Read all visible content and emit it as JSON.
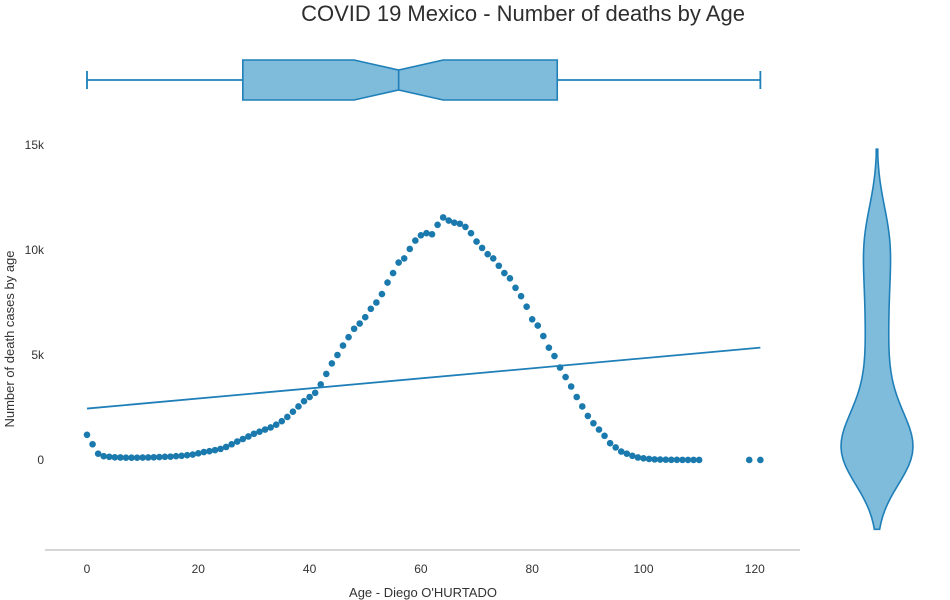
{
  "chart_data": {
    "type": "scatter",
    "title": "COVID 19 Mexico - Number of deaths by Age",
    "xlabel": "Age - Diego O'HURTADO",
    "ylabel": "Number of death cases by age",
    "xlim": [
      -7.5,
      128
    ],
    "ylim": [
      -4200,
      15000
    ],
    "x_ticks": [
      0,
      20,
      40,
      60,
      80,
      100,
      120
    ],
    "x_tick_labels": [
      "0",
      "20",
      "40",
      "60",
      "80",
      "100",
      "120"
    ],
    "y_ticks": [
      0,
      5000,
      10000,
      15000
    ],
    "y_tick_labels": [
      "0",
      "5k",
      "10k",
      "15k"
    ],
    "grid": false,
    "colors": {
      "marker": "#1f77b4",
      "marker_fill": "#1a79ad",
      "trend_line": "#1f7fb8",
      "box_fill": "#7fbcdc",
      "box_stroke": "#1f7fb8",
      "axis": "#bdbdbd"
    },
    "series": [
      {
        "type": "scatter",
        "x": [
          0,
          1,
          2,
          3,
          4,
          5,
          6,
          7,
          8,
          9,
          10,
          11,
          12,
          13,
          14,
          15,
          16,
          17,
          18,
          19,
          20,
          21,
          22,
          23,
          24,
          25,
          26,
          27,
          28,
          29,
          30,
          31,
          32,
          33,
          34,
          35,
          36,
          37,
          38,
          39,
          40,
          41,
          42,
          43,
          44,
          45,
          46,
          47,
          48,
          49,
          50,
          51,
          52,
          53,
          54,
          55,
          56,
          57,
          58,
          59,
          60,
          61,
          62,
          63,
          64,
          65,
          66,
          67,
          68,
          69,
          70,
          71,
          72,
          73,
          74,
          75,
          76,
          77,
          78,
          79,
          80,
          81,
          82,
          83,
          84,
          85,
          86,
          87,
          88,
          89,
          90,
          91,
          92,
          93,
          94,
          95,
          96,
          97,
          98,
          99,
          100,
          101,
          102,
          103,
          104,
          105,
          106,
          107,
          108,
          109,
          110,
          119,
          121
        ],
        "y": [
          1200,
          750,
          300,
          180,
          150,
          130,
          120,
          110,
          110,
          110,
          115,
          120,
          130,
          140,
          150,
          160,
          180,
          200,
          230,
          260,
          320,
          380,
          420,
          470,
          530,
          620,
          750,
          880,
          1000,
          1120,
          1250,
          1350,
          1450,
          1550,
          1680,
          1850,
          2050,
          2300,
          2550,
          2800,
          3000,
          3200,
          3600,
          4100,
          4600,
          5000,
          5450,
          5850,
          6250,
          6500,
          6800,
          7200,
          7500,
          7900,
          8450,
          8900,
          9400,
          9600,
          10050,
          10450,
          10700,
          10800,
          10750,
          11200,
          11550,
          11400,
          11300,
          11250,
          11100,
          10800,
          10400,
          10100,
          9800,
          9600,
          9250,
          8900,
          8650,
          8200,
          7800,
          7300,
          6700,
          6400,
          5900,
          5350,
          4950,
          4400,
          3950,
          3500,
          3000,
          2550,
          2100,
          1750,
          1450,
          1150,
          800,
          600,
          400,
          300,
          200,
          120,
          80,
          50,
          30,
          20,
          15,
          10,
          8,
          6,
          4,
          3,
          2,
          2,
          1
        ]
      },
      {
        "type": "line",
        "name": "",
        "x": [
          0,
          121
        ],
        "y": [
          2450,
          5350
        ]
      }
    ],
    "marginal_top_boxplot": {
      "min": 0,
      "q1": 28,
      "median": 56,
      "q3": 84.5,
      "max": 121,
      "notch_low": 48,
      "notch_high": 64
    },
    "marginal_right_violin": {
      "min": -3300,
      "max": 14800
    }
  }
}
